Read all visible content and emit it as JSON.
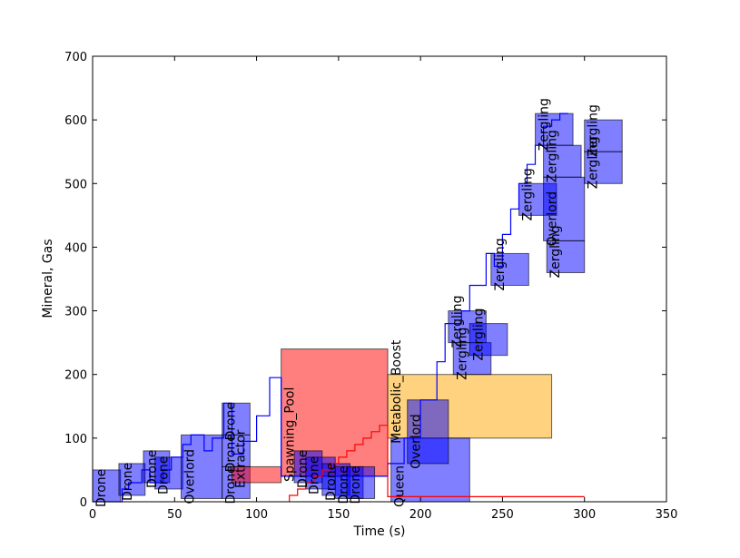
{
  "chart_data": {
    "type": "step-line with task boxes",
    "xlabel": "Time (s)",
    "ylabel": "Mineral, Gas",
    "xlim": [
      0,
      350
    ],
    "ylim": [
      0,
      700
    ],
    "xticks": [
      0,
      50,
      100,
      150,
      200,
      250,
      300,
      350
    ],
    "yticks": [
      0,
      100,
      200,
      300,
      400,
      500,
      600,
      700
    ],
    "grid": false,
    "colors": {
      "drone": "#0000ff",
      "gas": "#ff0000",
      "spawning": "#ff0000",
      "upgrade": "#ffa500",
      "minerals_line": "#0000ff",
      "gas_line": "#ff0000"
    },
    "series": [
      {
        "kind": "step",
        "color": "#0000ff",
        "x": [
          0,
          18,
          18,
          22,
          22,
          30,
          30,
          35,
          35,
          43,
          43,
          48,
          48,
          55,
          55,
          60,
          60,
          68,
          68,
          73,
          73,
          80,
          80,
          85,
          85,
          92,
          92,
          100,
          100,
          108,
          108,
          115,
          115,
          180,
          180,
          190,
          190,
          200,
          200,
          210,
          210,
          215,
          215,
          225,
          225,
          230,
          230,
          240,
          240,
          245,
          245,
          250,
          250,
          255,
          255,
          260,
          260,
          265,
          265,
          270,
          270,
          275,
          275,
          280,
          280,
          285,
          285,
          290
        ],
        "y": [
          0,
          0,
          20,
          20,
          30,
          30,
          50,
          50,
          30,
          30,
          50,
          50,
          70,
          70,
          90,
          90,
          105,
          105,
          80,
          80,
          100,
          100,
          155,
          155,
          75,
          75,
          95,
          95,
          135,
          135,
          195,
          195,
          40,
          40,
          60,
          60,
          100,
          100,
          160,
          160,
          220,
          220,
          280,
          280,
          300,
          300,
          340,
          340,
          390,
          390,
          370,
          370,
          420,
          420,
          460,
          460,
          500,
          500,
          530,
          530,
          560,
          560,
          590,
          590,
          600,
          600,
          610,
          610
        ]
      },
      {
        "kind": "step",
        "color": "#ff0000",
        "x": [
          120,
          120,
          125,
          125,
          130,
          130,
          135,
          135,
          140,
          140,
          145,
          145,
          150,
          150,
          155,
          155,
          160,
          160,
          165,
          165,
          170,
          170,
          175,
          175,
          180,
          180,
          300
        ],
        "y": [
          0,
          10,
          10,
          20,
          20,
          30,
          30,
          40,
          40,
          50,
          50,
          60,
          60,
          70,
          70,
          80,
          80,
          90,
          90,
          100,
          100,
          110,
          110,
          120,
          120,
          8,
          8
        ]
      }
    ],
    "boxes": [
      {
        "label": "Drone",
        "x0": 0,
        "x1": 17,
        "y0": 0,
        "y1": 50,
        "color": "#0000ff",
        "alpha": 0.5
      },
      {
        "label": "Drone",
        "x0": 16,
        "x1": 32,
        "y0": 10,
        "y1": 60,
        "color": "#0000ff",
        "alpha": 0.5
      },
      {
        "label": "Drone",
        "x0": 31,
        "x1": 47,
        "y0": 30,
        "y1": 80,
        "color": "#0000ff",
        "alpha": 0.5
      },
      {
        "label": "Drone",
        "x0": 38,
        "x1": 55,
        "y0": 20,
        "y1": 70,
        "color": "#0000ff",
        "alpha": 0.5
      },
      {
        "label": "Overlord",
        "x0": 54,
        "x1": 79,
        "y0": 5,
        "y1": 105,
        "color": "#0000ff",
        "alpha": 0.5
      },
      {
        "label": "Drone",
        "x0": 79,
        "x1": 96,
        "y0": 5,
        "y1": 55,
        "color": "#0000ff",
        "alpha": 0.5
      },
      {
        "label": "Drone",
        "x0": 79,
        "x1": 96,
        "y0": 55,
        "y1": 105,
        "color": "#0000ff",
        "alpha": 0.5
      },
      {
        "label": "Drone",
        "x0": 79,
        "x1": 96,
        "y0": 105,
        "y1": 155,
        "color": "#0000ff",
        "alpha": 0.5
      },
      {
        "label": "Extractor",
        "x0": 85,
        "x1": 115,
        "y0": 30,
        "y1": 55,
        "color": "#ff0000",
        "alpha": 0.5
      },
      {
        "label": "Spawning_Pool",
        "x0": 115,
        "x1": 180,
        "y0": 40,
        "y1": 240,
        "color": "#ff0000",
        "alpha": 0.5
      },
      {
        "label": "Drone",
        "x0": 123,
        "x1": 140,
        "y0": 30,
        "y1": 80,
        "color": "#0000ff",
        "alpha": 0.5
      },
      {
        "label": "Drone",
        "x0": 130,
        "x1": 148,
        "y0": 20,
        "y1": 70,
        "color": "#0000ff",
        "alpha": 0.5
      },
      {
        "label": "Drone",
        "x0": 140,
        "x1": 157,
        "y0": 10,
        "y1": 60,
        "color": "#0000ff",
        "alpha": 0.5
      },
      {
        "label": "Drone",
        "x0": 148,
        "x1": 165,
        "y0": 5,
        "y1": 55,
        "color": "#0000ff",
        "alpha": 0.5
      },
      {
        "label": "Drone",
        "x0": 155,
        "x1": 172,
        "y0": 5,
        "y1": 55,
        "color": "#0000ff",
        "alpha": 0.5
      },
      {
        "label": "Metabolic_Boost",
        "x0": 180,
        "x1": 280,
        "y0": 100,
        "y1": 200,
        "color": "#ffa500",
        "alpha": 0.5
      },
      {
        "label": "Queen",
        "x0": 182,
        "x1": 230,
        "y0": 0,
        "y1": 100,
        "color": "#0000ff",
        "alpha": 0.5
      },
      {
        "label": "Overlord",
        "x0": 192,
        "x1": 217,
        "y0": 60,
        "y1": 160,
        "color": "#0000ff",
        "alpha": 0.5
      },
      {
        "label": "Zergling",
        "x0": 217,
        "x1": 240,
        "y0": 250,
        "y1": 300,
        "color": "#0000ff",
        "alpha": 0.5
      },
      {
        "label": "Zergling",
        "x0": 220,
        "x1": 243,
        "y0": 200,
        "y1": 250,
        "color": "#0000ff",
        "alpha": 0.5
      },
      {
        "label": "Zergling",
        "x0": 230,
        "x1": 253,
        "y0": 230,
        "y1": 280,
        "color": "#0000ff",
        "alpha": 0.5
      },
      {
        "label": "Zergling",
        "x0": 243,
        "x1": 266,
        "y0": 340,
        "y1": 390,
        "color": "#0000ff",
        "alpha": 0.5
      },
      {
        "label": "Zergling",
        "x0": 260,
        "x1": 283,
        "y0": 450,
        "y1": 500,
        "color": "#0000ff",
        "alpha": 0.5
      },
      {
        "label": "Zergling",
        "x0": 270,
        "x1": 293,
        "y0": 560,
        "y1": 610,
        "color": "#0000ff",
        "alpha": 0.5
      },
      {
        "label": "Zergling",
        "x0": 275,
        "x1": 298,
        "y0": 510,
        "y1": 560,
        "color": "#0000ff",
        "alpha": 0.5
      },
      {
        "label": "Overlord",
        "x0": 275,
        "x1": 300,
        "y0": 410,
        "y1": 510,
        "color": "#0000ff",
        "alpha": 0.5
      },
      {
        "label": "Zergling",
        "x0": 277,
        "x1": 300,
        "y0": 360,
        "y1": 410,
        "color": "#0000ff",
        "alpha": 0.5
      },
      {
        "label": "Zergling",
        "x0": 300,
        "x1": 323,
        "y0": 550,
        "y1": 600,
        "color": "#0000ff",
        "alpha": 0.5
      },
      {
        "label": "Zergling",
        "x0": 300,
        "x1": 323,
        "y0": 500,
        "y1": 550,
        "color": "#0000ff",
        "alpha": 0.5
      }
    ]
  }
}
